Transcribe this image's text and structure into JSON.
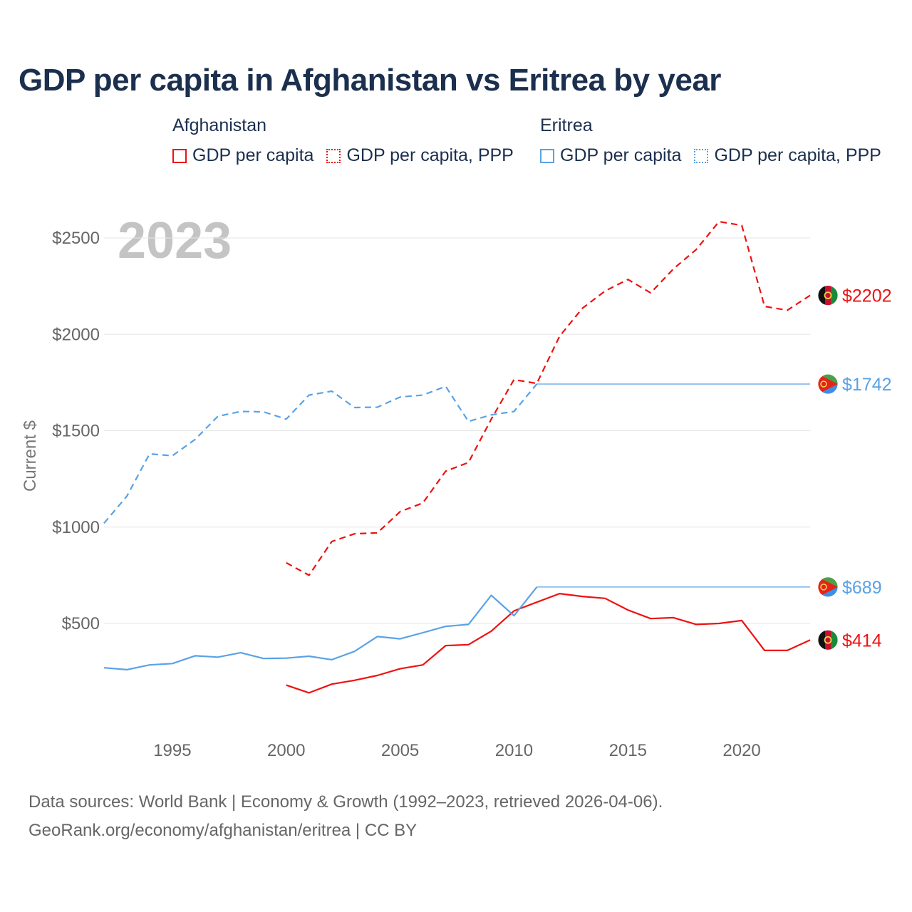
{
  "title": "GDP per capita in Afghanistan vs Eritrea by year",
  "legend": {
    "groups": [
      {
        "name": "Afghanistan",
        "color": "#ee1111",
        "items": [
          {
            "label": "GDP per capita",
            "style": "solid"
          },
          {
            "label": "GDP per capita, PPP",
            "style": "dotted"
          }
        ]
      },
      {
        "name": "Eritrea",
        "color": "#5aa2e6",
        "items": [
          {
            "label": "GDP per capita",
            "style": "solid"
          },
          {
            "label": "GDP per capita, PPP",
            "style": "dotted"
          }
        ]
      }
    ]
  },
  "year_label": "2023",
  "source": {
    "line1": "Data sources: World Bank | Economy & Growth (1992–2023, retrieved 2026-04-06).",
    "line2": "GeoRank.org/economy/afghanistan/eritrea | CC BY"
  },
  "chart_data": {
    "type": "line",
    "title": "GDP per capita in Afghanistan vs Eritrea by year",
    "xlabel": "",
    "ylabel": "Current $",
    "xlim": [
      1992,
      2023
    ],
    "ylim": [
      0,
      2700
    ],
    "xticks": [
      1995,
      2000,
      2005,
      2010,
      2015,
      2020
    ],
    "yticks": [
      500,
      1000,
      1500,
      2000,
      2500
    ],
    "ytick_labels": [
      "$500",
      "$1000",
      "$1500",
      "$2000",
      "$2500"
    ],
    "grid": true,
    "series": [
      {
        "name": "Afghanistan GDP per capita",
        "country": "Afghanistan",
        "color": "#ee1111",
        "dash": "solid",
        "end_label": "$414",
        "x": [
          2000,
          2001,
          2002,
          2003,
          2004,
          2005,
          2006,
          2007,
          2008,
          2009,
          2010,
          2011,
          2012,
          2013,
          2014,
          2015,
          2016,
          2017,
          2018,
          2019,
          2020,
          2021,
          2022,
          2023
        ],
        "values": [
          180,
          140,
          185,
          205,
          230,
          265,
          285,
          385,
          390,
          460,
          565,
          610,
          655,
          640,
          630,
          570,
          525,
          530,
          495,
          500,
          515,
          360,
          360,
          414
        ]
      },
      {
        "name": "Afghanistan GDP per capita, PPP",
        "country": "Afghanistan",
        "color": "#ee1111",
        "dash": "dashed",
        "end_label": "$2202",
        "x": [
          2000,
          2001,
          2002,
          2003,
          2004,
          2005,
          2006,
          2007,
          2008,
          2009,
          2010,
          2011,
          2012,
          2013,
          2014,
          2015,
          2016,
          2017,
          2018,
          2019,
          2020,
          2021,
          2022,
          2023
        ],
        "values": [
          815,
          750,
          925,
          965,
          970,
          1080,
          1125,
          1290,
          1335,
          1560,
          1765,
          1745,
          1990,
          2135,
          2225,
          2285,
          2215,
          2340,
          2440,
          2585,
          2565,
          2145,
          2125,
          2202
        ]
      },
      {
        "name": "Eritrea GDP per capita",
        "country": "Eritrea",
        "color": "#5aa2e6",
        "dash": "solid",
        "end_label": "$689",
        "x": [
          1992,
          1993,
          1994,
          1995,
          1996,
          1997,
          1998,
          1999,
          2000,
          2001,
          2002,
          2003,
          2004,
          2005,
          2006,
          2007,
          2008,
          2009,
          2010,
          2011,
          2023
        ],
        "values": [
          270,
          260,
          285,
          292,
          332,
          325,
          348,
          318,
          320,
          330,
          312,
          355,
          432,
          420,
          452,
          485,
          495,
          646,
          540,
          689,
          689
        ]
      },
      {
        "name": "Eritrea GDP per capita, PPP",
        "country": "Eritrea",
        "color": "#5aa2e6",
        "dash": "dashed",
        "end_label": "$1742",
        "x": [
          1992,
          1993,
          1994,
          1995,
          1996,
          1997,
          1998,
          1999,
          2000,
          2001,
          2002,
          2003,
          2004,
          2005,
          2006,
          2007,
          2008,
          2009,
          2010,
          2011,
          2023
        ],
        "values": [
          1020,
          1160,
          1380,
          1370,
          1455,
          1575,
          1600,
          1598,
          1560,
          1685,
          1705,
          1620,
          1622,
          1675,
          1685,
          1730,
          1548,
          1582,
          1600,
          1742,
          1742
        ]
      }
    ]
  }
}
